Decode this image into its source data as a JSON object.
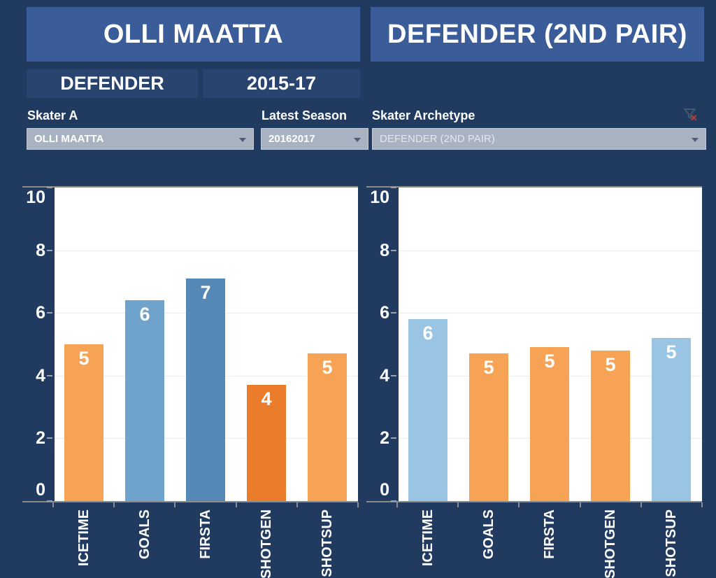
{
  "header": {
    "player_title": "OLLI MAATTA",
    "archetype_title": "DEFENDER (2ND PAIR)",
    "position_label": "DEFENDER",
    "seasons_label": "2015-17"
  },
  "filters": {
    "skater_a": {
      "label": "Skater A",
      "value": "OLLI MAATTA"
    },
    "latest_season": {
      "label": "Latest Season",
      "value": "20162017"
    },
    "skater_archetype": {
      "label": "Skater Archetype",
      "value": "DEFENDER (2ND PAIR)"
    }
  },
  "icons": {
    "dropdown_caret": "chevron-down",
    "filter_clear": "funnel-with-red-x"
  },
  "colors": {
    "background": "#213A60",
    "header_bg": "#3A5C99",
    "strip_bg": "#28446F",
    "dropdown_bg": "#A9B2C1",
    "dropdown_border": "#C5CCD6",
    "text": "#FFFFFF",
    "orange": "#F7A355",
    "dark_orange": "#EB7C2C",
    "medium_blue": "#6FA3CC",
    "steel_blue": "#5688B5",
    "light_blue": "#9AC4E4",
    "ruler_gray": "#8C8C8C",
    "grid_gray": "#ECECEC",
    "funnel_red": "#C0392B"
  },
  "chart_data": [
    {
      "type": "bar",
      "panel": "skater-a",
      "categories": [
        "ICETIME",
        "GOALS",
        "FIRSTA",
        "SHOTGEN",
        "SHOTSUP"
      ],
      "values": [
        5.0,
        6.4,
        7.1,
        3.7,
        4.7
      ],
      "bar_labels": [
        "5",
        "6",
        "7",
        "4",
        "5"
      ],
      "bar_colors": [
        "#F7A355",
        "#6FA3CC",
        "#5688B5",
        "#EB7C2C",
        "#F7A355"
      ],
      "ylim": [
        0,
        10
      ],
      "yticks": [
        0,
        2,
        4,
        6,
        8,
        10
      ],
      "grid": true,
      "legend": "none"
    },
    {
      "type": "bar",
      "panel": "skater-archetype",
      "categories": [
        "ICETIME",
        "GOALS",
        "FIRSTA",
        "SHOTGEN",
        "SHOTSUP"
      ],
      "values": [
        5.8,
        4.7,
        4.9,
        4.8,
        5.2
      ],
      "bar_labels": [
        "6",
        "5",
        "5",
        "5",
        "5"
      ],
      "bar_colors": [
        "#9AC4E4",
        "#F7A355",
        "#F7A355",
        "#F7A355",
        "#9AC4E4"
      ],
      "ylim": [
        0,
        10
      ],
      "yticks": [
        0,
        2,
        4,
        6,
        8,
        10
      ],
      "grid": true,
      "legend": "none"
    }
  ]
}
